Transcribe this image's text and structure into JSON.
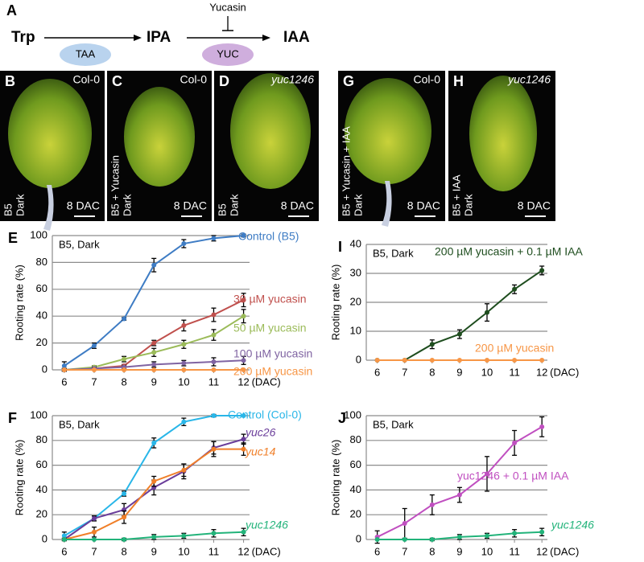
{
  "diagram": {
    "label": "A",
    "nodes": [
      "Trp",
      "IPA",
      "IAA"
    ],
    "enzymes": [
      "TAA",
      "YUC"
    ],
    "inhibitor": "Yucasin"
  },
  "photos": [
    {
      "label": "B",
      "genotype": "Col-0",
      "condition": [
        "B5",
        "Dark"
      ],
      "time": "8 DAC",
      "italic": false
    },
    {
      "label": "C",
      "genotype": "Col-0",
      "condition": [
        "B5 + Yucasin",
        "Dark"
      ],
      "time": "8 DAC",
      "italic": false
    },
    {
      "label": "D",
      "genotype": "yuc1246",
      "condition": [
        "B5",
        "Dark"
      ],
      "time": "8 DAC",
      "italic": true
    },
    {
      "label": "G",
      "genotype": "Col-0",
      "condition": [
        "B5 + Yucasin + IAA",
        "Dark"
      ],
      "time": "8 DAC",
      "italic": false
    },
    {
      "label": "H",
      "genotype": "yuc1246",
      "condition": [
        "B5 + IAA",
        "Dark"
      ],
      "time": "8 DAC",
      "italic": true
    }
  ],
  "chart_data": [
    {
      "type": "line",
      "panel": "E",
      "annotation": "B5, Dark",
      "ylabel": "Rooting rate (%)",
      "xlabel": "(DAC)",
      "x": [
        6,
        7,
        8,
        9,
        10,
        11,
        12
      ],
      "xlim": [
        5.6,
        12.2
      ],
      "xticks": [
        6,
        7,
        8,
        9,
        10,
        11,
        12
      ],
      "ylim": [
        0,
        100
      ],
      "yticks": [
        0,
        20,
        40,
        60,
        80,
        100
      ],
      "grid": true,
      "series": [
        {
          "name": "Control (B5)",
          "color": "#3e7cc4",
          "italic": false,
          "values": [
            3,
            18,
            38,
            78,
            94,
            98,
            100
          ],
          "errors": [
            3,
            2,
            1,
            5,
            3,
            2,
            1
          ]
        },
        {
          "name": "30 µM yucasin",
          "color": "#c0504d",
          "italic": false,
          "values": [
            0,
            1,
            3,
            20,
            33,
            41,
            52
          ],
          "errors": [
            1,
            1,
            1,
            2,
            4,
            5,
            5
          ]
        },
        {
          "name": "50 µM yucasin",
          "color": "#9bbb59",
          "italic": false,
          "values": [
            0,
            2,
            8,
            13,
            19,
            26,
            40
          ],
          "errors": [
            1,
            1,
            2,
            3,
            3,
            4,
            5
          ]
        },
        {
          "name": "100 µM yucasin",
          "color": "#8064a2",
          "italic": false,
          "values": [
            0,
            1,
            2,
            4,
            5,
            6,
            7
          ],
          "errors": [
            1,
            1,
            1,
            2,
            2,
            3,
            3
          ]
        },
        {
          "name": "200 µM yucasin",
          "color": "#f79646",
          "italic": false,
          "values": [
            0,
            0,
            0,
            0,
            0,
            0,
            0
          ],
          "errors": [
            0,
            0,
            0,
            0,
            0,
            0,
            0
          ]
        }
      ]
    },
    {
      "type": "line",
      "panel": "F",
      "annotation": "B5, Dark",
      "ylabel": "Rooting rate (%)",
      "xlabel": "(DAC)",
      "x": [
        6,
        7,
        8,
        9,
        10,
        11,
        12
      ],
      "xlim": [
        5.6,
        12.2
      ],
      "xticks": [
        6,
        7,
        8,
        9,
        10,
        11,
        12
      ],
      "ylim": [
        0,
        100
      ],
      "yticks": [
        0,
        20,
        40,
        60,
        80,
        100
      ],
      "grid": true,
      "series": [
        {
          "name": "Control (Col-0)",
          "color": "#29b6e8",
          "italic": false,
          "values": [
            3,
            17,
            37,
            78,
            95,
            100,
            100
          ],
          "errors": [
            3,
            2,
            2,
            4,
            3,
            1,
            0
          ]
        },
        {
          "name": "yuc26",
          "color": "#6a3d9a",
          "italic": true,
          "values": [
            0,
            17,
            24,
            42,
            55,
            74,
            81
          ],
          "errors": [
            1,
            2,
            5,
            6,
            6,
            5,
            4
          ]
        },
        {
          "name": "yuc14",
          "color": "#f07f29",
          "italic": true,
          "values": [
            0,
            6,
            18,
            47,
            56,
            73,
            73
          ],
          "errors": [
            1,
            4,
            5,
            4,
            5,
            6,
            5
          ]
        },
        {
          "name": "yuc1246",
          "color": "#22b37a",
          "italic": true,
          "values": [
            0,
            0,
            0,
            2,
            3,
            5,
            6
          ],
          "errors": [
            0,
            0,
            1,
            2,
            2,
            3,
            3
          ]
        }
      ]
    },
    {
      "type": "line",
      "panel": "I",
      "annotation": "B5, Dark",
      "ylabel": "Rooting rate (%)",
      "xlabel": "(DAC)",
      "x": [
        6,
        7,
        8,
        9,
        10,
        11,
        12
      ],
      "xlim": [
        5.6,
        12.2
      ],
      "xticks": [
        6,
        7,
        8,
        9,
        10,
        11,
        12
      ],
      "ylim": [
        0,
        40
      ],
      "yticks": [
        0,
        10,
        20,
        30,
        40
      ],
      "grid": true,
      "series": [
        {
          "name": "200 µM yucasin + 0.1 µM IAA",
          "color": "#1e4d1e",
          "italic": false,
          "values": [
            0,
            0,
            5.5,
            9,
            16.5,
            24.5,
            31
          ],
          "errors": [
            0,
            0,
            1.5,
            1.5,
            3,
            1.5,
            1.5
          ]
        },
        {
          "name": "200 µM yucasin",
          "color": "#f79646",
          "italic": false,
          "values": [
            0,
            0,
            0,
            0,
            0,
            0,
            0
          ],
          "errors": [
            0,
            0,
            0,
            0,
            0,
            0,
            0
          ]
        }
      ]
    },
    {
      "type": "line",
      "panel": "J",
      "annotation": "B5, Dark",
      "ylabel": "Rooting rate (%)",
      "xlabel": "(DAC)",
      "x": [
        6,
        7,
        8,
        9,
        10,
        11,
        12
      ],
      "xlim": [
        5.6,
        12.2
      ],
      "xticks": [
        6,
        7,
        8,
        9,
        10,
        11,
        12
      ],
      "ylim": [
        0,
        100
      ],
      "yticks": [
        0,
        20,
        40,
        60,
        80,
        100
      ],
      "grid": true,
      "series": [
        {
          "name": "yuc1246 + 0.1 µM IAA",
          "color": "#c04fc0",
          "italic": false,
          "values": [
            2,
            13,
            28,
            36,
            53,
            78,
            91
          ],
          "errors": [
            5,
            12,
            8,
            6,
            14,
            10,
            8
          ]
        },
        {
          "name": "yuc1246",
          "color": "#22b37a",
          "italic": true,
          "values": [
            0,
            0,
            0,
            2,
            3,
            5,
            6
          ],
          "errors": [
            0,
            0,
            1,
            2,
            2,
            3,
            3
          ]
        }
      ]
    }
  ]
}
